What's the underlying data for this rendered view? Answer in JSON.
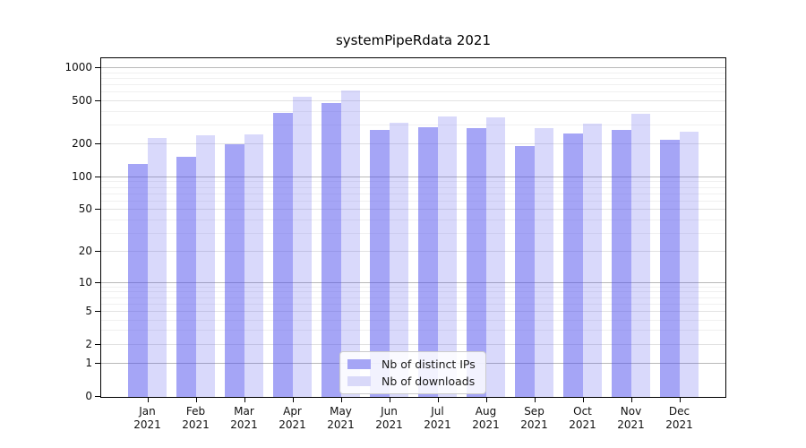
{
  "chart_data": {
    "type": "bar",
    "title": "systemPipeRdata 2021",
    "x_tick_year": "2021",
    "categories": [
      "Jan",
      "Feb",
      "Mar",
      "Apr",
      "May",
      "Jun",
      "Jul",
      "Aug",
      "Sep",
      "Oct",
      "Nov",
      "Dec"
    ],
    "series": [
      {
        "name": "Nb of distinct IPs",
        "color": "#a5a5f5",
        "fill": "rgba(75,75,237,0.5)",
        "values": [
          130,
          151,
          199,
          384,
          472,
          268,
          281,
          280,
          191,
          249,
          268,
          216
        ]
      },
      {
        "name": "Nb of downloads",
        "color": "#d9d9f9",
        "fill": "rgba(75,75,237,0.21)",
        "values": [
          225,
          238,
          245,
          537,
          614,
          310,
          355,
          349,
          276,
          303,
          372,
          259
        ]
      }
    ],
    "y_axis": {
      "scale": "log1p",
      "ticks": [
        0,
        1,
        2,
        5,
        10,
        20,
        50,
        100,
        200,
        500,
        1000
      ],
      "top_value": 1100
    },
    "x_axis": {
      "label_lines": 2
    },
    "legend_position": "bottom-center",
    "grid": "both"
  }
}
